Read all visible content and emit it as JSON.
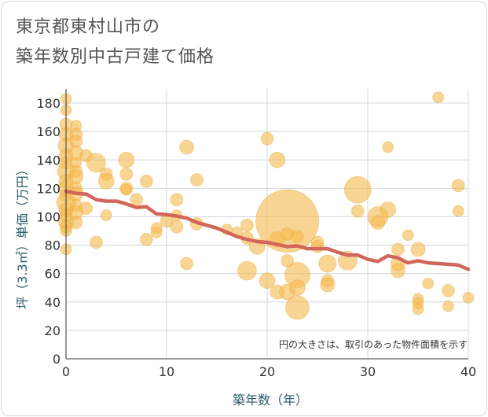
{
  "page": {
    "title_line1": "東京都東村山市の",
    "title_line2": "築年数別中古戸建て価格"
  },
  "colors": {
    "bubble": "#f5b94b",
    "bubble_stroke": "#e8a33a",
    "trend": "#d2665a",
    "grid": "#cfd8dc",
    "axis_title": "#2b5c6b"
  },
  "chart_data": {
    "type": "scatter",
    "title": "東京都東村山市の築年数別中古戸建て価格",
    "xlabel": "築年数（年）",
    "ylabel": "坪（3.3㎡）単価（万円）",
    "note": "円の大きさは、取引のあった物件面積を示す",
    "xlim": [
      0,
      40
    ],
    "ylim": [
      0,
      190
    ],
    "x_ticks": [
      0,
      10,
      20,
      30,
      40
    ],
    "y_ticks": [
      0,
      20,
      40,
      60,
      80,
      100,
      120,
      140,
      160,
      180
    ],
    "grid": true,
    "series": [
      {
        "kind": "bubble",
        "points": [
          {
            "x": 0,
            "y": 183,
            "s": 7
          },
          {
            "x": 0,
            "y": 175,
            "s": 7
          },
          {
            "x": 0,
            "y": 165,
            "s": 8
          },
          {
            "x": 0,
            "y": 158,
            "s": 9
          },
          {
            "x": 0,
            "y": 150,
            "s": 10
          },
          {
            "x": 0,
            "y": 143,
            "s": 9
          },
          {
            "x": 0,
            "y": 138,
            "s": 8
          },
          {
            "x": 0,
            "y": 132,
            "s": 11
          },
          {
            "x": 0,
            "y": 125,
            "s": 9
          },
          {
            "x": 0,
            "y": 120,
            "s": 10
          },
          {
            "x": 0,
            "y": 115,
            "s": 8
          },
          {
            "x": 0,
            "y": 110,
            "s": 12
          },
          {
            "x": 0,
            "y": 105,
            "s": 9
          },
          {
            "x": 0,
            "y": 101,
            "s": 8
          },
          {
            "x": 0,
            "y": 97,
            "s": 10
          },
          {
            "x": 0,
            "y": 93,
            "s": 8
          },
          {
            "x": 0,
            "y": 90,
            "s": 7
          },
          {
            "x": 0,
            "y": 77,
            "s": 7
          },
          {
            "x": 1,
            "y": 164,
            "s": 7
          },
          {
            "x": 1,
            "y": 158,
            "s": 8
          },
          {
            "x": 1,
            "y": 153,
            "s": 8
          },
          {
            "x": 1,
            "y": 145,
            "s": 9
          },
          {
            "x": 1,
            "y": 138,
            "s": 7
          },
          {
            "x": 1,
            "y": 132,
            "s": 8
          },
          {
            "x": 1,
            "y": 128,
            "s": 9
          },
          {
            "x": 1,
            "y": 120,
            "s": 8
          },
          {
            "x": 1,
            "y": 116,
            "s": 9
          },
          {
            "x": 1,
            "y": 108,
            "s": 8
          },
          {
            "x": 1,
            "y": 103,
            "s": 9
          },
          {
            "x": 1,
            "y": 96,
            "s": 8
          },
          {
            "x": 2,
            "y": 143,
            "s": 8
          },
          {
            "x": 2,
            "y": 106,
            "s": 8
          },
          {
            "x": 3,
            "y": 138,
            "s": 12
          },
          {
            "x": 3,
            "y": 82,
            "s": 8
          },
          {
            "x": 4,
            "y": 130,
            "s": 8
          },
          {
            "x": 4,
            "y": 125,
            "s": 10
          },
          {
            "x": 4,
            "y": 101,
            "s": 7
          },
          {
            "x": 6,
            "y": 140,
            "s": 10
          },
          {
            "x": 6,
            "y": 130,
            "s": 8
          },
          {
            "x": 6,
            "y": 120,
            "s": 8
          },
          {
            "x": 6,
            "y": 119,
            "s": 7
          },
          {
            "x": 7,
            "y": 112,
            "s": 8
          },
          {
            "x": 8,
            "y": 125,
            "s": 8
          },
          {
            "x": 8,
            "y": 84,
            "s": 8
          },
          {
            "x": 9,
            "y": 92,
            "s": 7
          },
          {
            "x": 9,
            "y": 89,
            "s": 7
          },
          {
            "x": 10,
            "y": 97,
            "s": 8
          },
          {
            "x": 11,
            "y": 112,
            "s": 8
          },
          {
            "x": 11,
            "y": 101,
            "s": 7
          },
          {
            "x": 11,
            "y": 93,
            "s": 8
          },
          {
            "x": 12,
            "y": 149,
            "s": 9
          },
          {
            "x": 12,
            "y": 67,
            "s": 8
          },
          {
            "x": 13,
            "y": 126,
            "s": 8
          },
          {
            "x": 13,
            "y": 95,
            "s": 8
          },
          {
            "x": 16,
            "y": 91,
            "s": 7
          },
          {
            "x": 17,
            "y": 89,
            "s": 7
          },
          {
            "x": 18,
            "y": 94,
            "s": 8
          },
          {
            "x": 18,
            "y": 85,
            "s": 8
          },
          {
            "x": 18,
            "y": 62,
            "s": 12
          },
          {
            "x": 19,
            "y": 79,
            "s": 10
          },
          {
            "x": 20,
            "y": 155,
            "s": 8
          },
          {
            "x": 20,
            "y": 55,
            "s": 10
          },
          {
            "x": 21,
            "y": 140,
            "s": 10
          },
          {
            "x": 21,
            "y": 84,
            "s": 10
          },
          {
            "x": 21,
            "y": 47,
            "s": 9
          },
          {
            "x": 22,
            "y": 97,
            "s": 40
          },
          {
            "x": 22,
            "y": 88,
            "s": 8
          },
          {
            "x": 22,
            "y": 69,
            "s": 8
          },
          {
            "x": 22,
            "y": 47,
            "s": 10
          },
          {
            "x": 23,
            "y": 86,
            "s": 8
          },
          {
            "x": 23,
            "y": 59,
            "s": 16
          },
          {
            "x": 23,
            "y": 50,
            "s": 10
          },
          {
            "x": 23,
            "y": 36,
            "s": 15
          },
          {
            "x": 25,
            "y": 82,
            "s": 8
          },
          {
            "x": 25,
            "y": 79,
            "s": 8
          },
          {
            "x": 26,
            "y": 67,
            "s": 11
          },
          {
            "x": 26,
            "y": 55,
            "s": 8
          },
          {
            "x": 26,
            "y": 52,
            "s": 9
          },
          {
            "x": 28,
            "y": 69,
            "s": 12
          },
          {
            "x": 29,
            "y": 119,
            "s": 17
          },
          {
            "x": 29,
            "y": 104,
            "s": 8
          },
          {
            "x": 31,
            "y": 100,
            "s": 13
          },
          {
            "x": 31,
            "y": 96,
            "s": 9
          },
          {
            "x": 32,
            "y": 149,
            "s": 7
          },
          {
            "x": 32,
            "y": 105,
            "s": 10
          },
          {
            "x": 33,
            "y": 77,
            "s": 8
          },
          {
            "x": 33,
            "y": 67,
            "s": 9
          },
          {
            "x": 33,
            "y": 62,
            "s": 9
          },
          {
            "x": 34,
            "y": 87,
            "s": 7
          },
          {
            "x": 35,
            "y": 77,
            "s": 9
          },
          {
            "x": 35,
            "y": 42,
            "s": 7
          },
          {
            "x": 35,
            "y": 39,
            "s": 7
          },
          {
            "x": 35,
            "y": 35,
            "s": 7
          },
          {
            "x": 36,
            "y": 53,
            "s": 7
          },
          {
            "x": 37,
            "y": 184,
            "s": 7
          },
          {
            "x": 38,
            "y": 48,
            "s": 8
          },
          {
            "x": 38,
            "y": 37,
            "s": 7
          },
          {
            "x": 39,
            "y": 122,
            "s": 8
          },
          {
            "x": 39,
            "y": 104,
            "s": 7
          },
          {
            "x": 40,
            "y": 43,
            "s": 7
          }
        ]
      },
      {
        "kind": "trend",
        "points": [
          {
            "x": 0,
            "y": 118
          },
          {
            "x": 1,
            "y": 116.5
          },
          {
            "x": 2,
            "y": 116
          },
          {
            "x": 3,
            "y": 112
          },
          {
            "x": 4,
            "y": 111
          },
          {
            "x": 5,
            "y": 111
          },
          {
            "x": 6,
            "y": 109
          },
          {
            "x": 7,
            "y": 106.5
          },
          {
            "x": 8,
            "y": 107
          },
          {
            "x": 9,
            "y": 102
          },
          {
            "x": 10,
            "y": 101.5
          },
          {
            "x": 11,
            "y": 100.5
          },
          {
            "x": 12,
            "y": 99
          },
          {
            "x": 13,
            "y": 96
          },
          {
            "x": 14,
            "y": 94
          },
          {
            "x": 15,
            "y": 92
          },
          {
            "x": 16,
            "y": 89
          },
          {
            "x": 17,
            "y": 86
          },
          {
            "x": 18,
            "y": 84
          },
          {
            "x": 19,
            "y": 82.5
          },
          {
            "x": 20,
            "y": 82
          },
          {
            "x": 21,
            "y": 80.5
          },
          {
            "x": 22,
            "y": 79
          },
          {
            "x": 23,
            "y": 79.5
          },
          {
            "x": 24,
            "y": 77.5
          },
          {
            "x": 25,
            "y": 77.5
          },
          {
            "x": 26,
            "y": 77.5
          },
          {
            "x": 27,
            "y": 75
          },
          {
            "x": 28,
            "y": 73
          },
          {
            "x": 29,
            "y": 73
          },
          {
            "x": 30,
            "y": 70
          },
          {
            "x": 31,
            "y": 68.5
          },
          {
            "x": 32,
            "y": 72.5
          },
          {
            "x": 33,
            "y": 71
          },
          {
            "x": 34,
            "y": 67.5
          },
          {
            "x": 35,
            "y": 69
          },
          {
            "x": 36,
            "y": 67.5
          },
          {
            "x": 37,
            "y": 67
          },
          {
            "x": 38,
            "y": 66.5
          },
          {
            "x": 39,
            "y": 66
          },
          {
            "x": 40,
            "y": 63
          }
        ]
      }
    ]
  }
}
